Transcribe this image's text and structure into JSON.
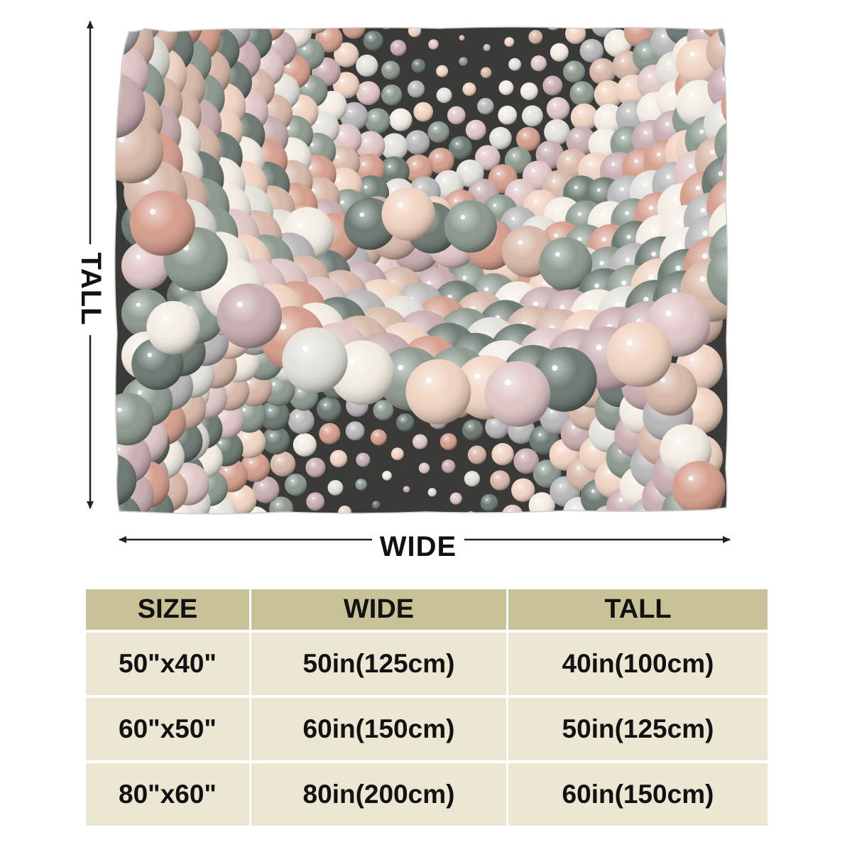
{
  "labels": {
    "wide": "WIDE",
    "tall": "TALL"
  },
  "colors": {
    "header_bg": "#c9c197",
    "row_bg": "#ebe7d3",
    "arrow": "#222222",
    "sphere_palette": [
      "#8d9a90",
      "#d8b9a9",
      "#c9aeb2",
      "#e4e2dc",
      "#f1d4c2",
      "#b9b7b9",
      "#e1c7c8",
      "#6c7a72",
      "#f3ede4",
      "#d69f8d"
    ]
  },
  "size_table": {
    "headers": [
      "SIZE",
      "WIDE",
      "TALL"
    ],
    "rows": [
      [
        "50\"x40\"",
        "50in(125cm)",
        "40in(100cm)"
      ],
      [
        "60\"x50\"",
        "60in(150cm)",
        "50in(125cm)"
      ],
      [
        "80\"x60\"",
        "80in(200cm)",
        "60in(150cm)"
      ]
    ]
  }
}
